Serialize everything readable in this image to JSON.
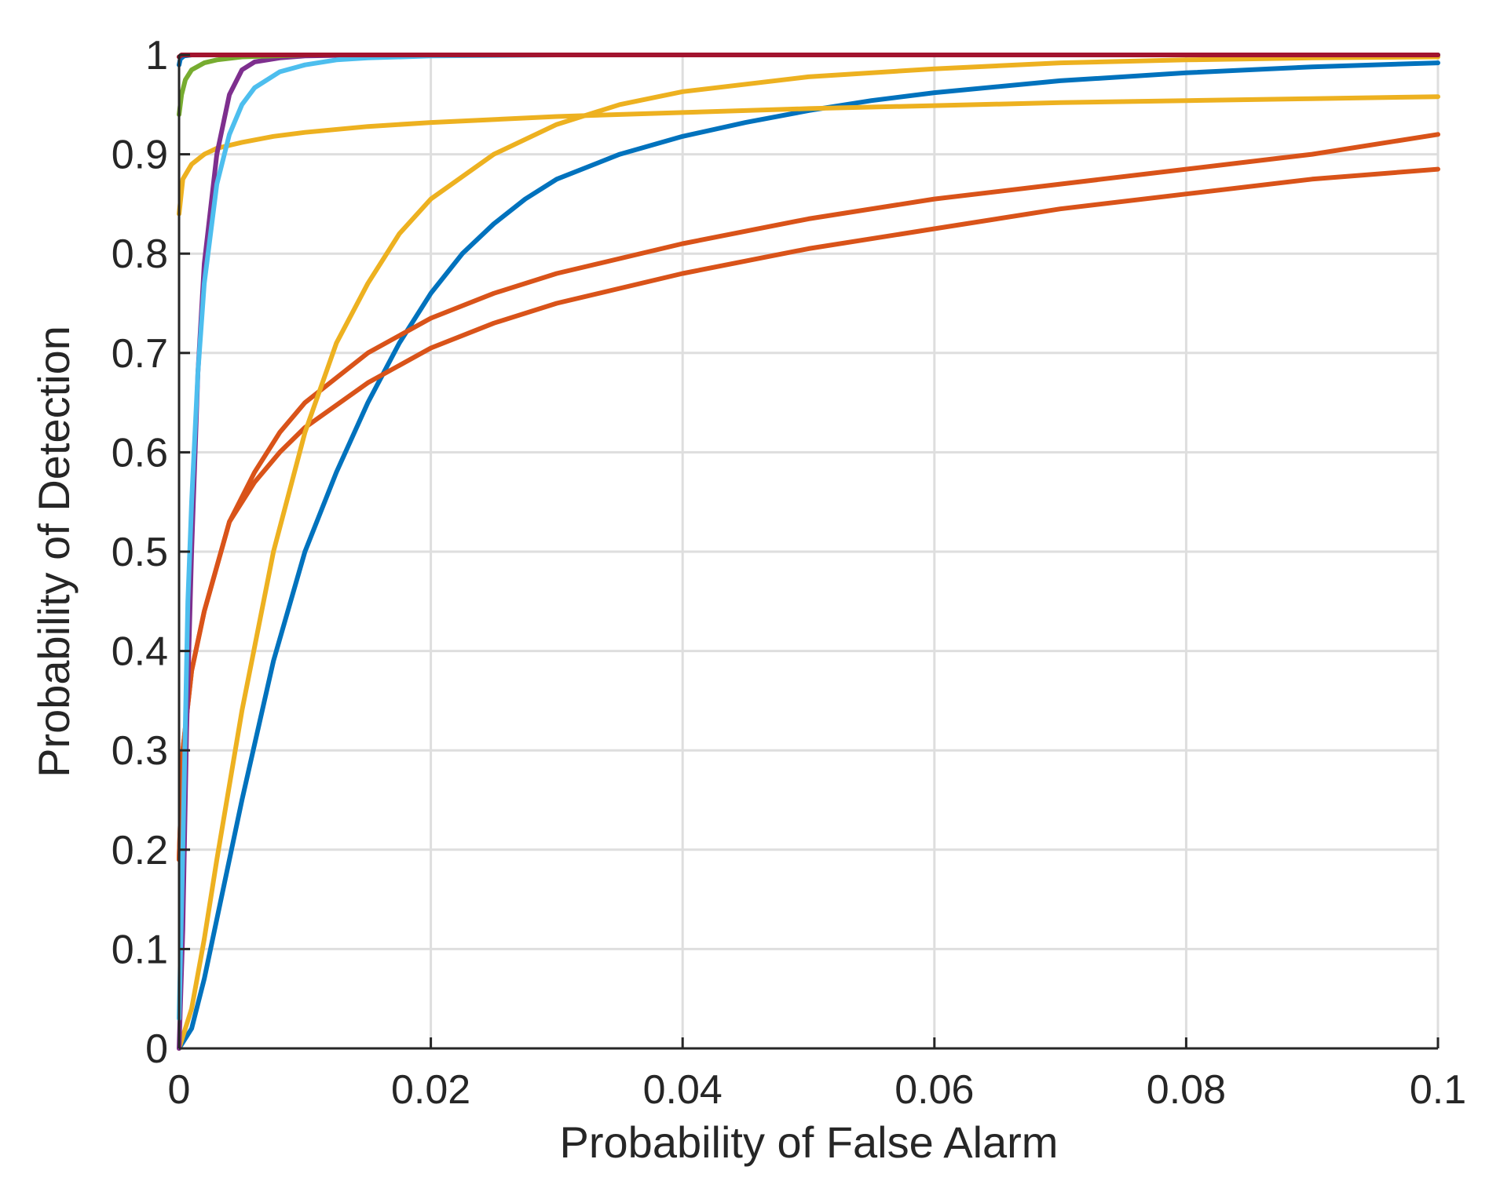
{
  "chart_data": {
    "type": "line",
    "xlabel": "Probability of False Alarm",
    "ylabel": "Probability of Detection",
    "xlim": [
      0,
      0.1
    ],
    "ylim": [
      0,
      1
    ],
    "grid": true,
    "xticks": [
      0,
      0.02,
      0.04,
      0.06,
      0.08,
      0.1
    ],
    "xtick_labels": [
      "0",
      "0.02",
      "0.04",
      "0.06",
      "0.08",
      "0.1"
    ],
    "yticks": [
      0,
      0.1,
      0.2,
      0.3,
      0.4,
      0.5,
      0.6,
      0.7,
      0.8,
      0.9,
      1
    ],
    "ytick_labels": [
      "0",
      "0.1",
      "0.2",
      "0.3",
      "0.4",
      "0.5",
      "0.6",
      "0.7",
      "0.8",
      "0.9",
      "1"
    ],
    "series": [
      {
        "color": "#0072bd",
        "x": [
          0,
          0.001,
          0.002,
          0.003,
          0.005,
          0.0075,
          0.01,
          0.0125,
          0.015,
          0.0175,
          0.02,
          0.0225,
          0.025,
          0.0275,
          0.03,
          0.035,
          0.04,
          0.045,
          0.05,
          0.055,
          0.06,
          0.07,
          0.08,
          0.09,
          0.1
        ],
        "y": [
          0,
          0.02,
          0.07,
          0.13,
          0.25,
          0.39,
          0.5,
          0.58,
          0.65,
          0.71,
          0.76,
          0.8,
          0.83,
          0.855,
          0.875,
          0.9,
          0.918,
          0.932,
          0.944,
          0.954,
          0.962,
          0.974,
          0.982,
          0.988,
          0.992
        ]
      },
      {
        "color": "#d95319",
        "x": [
          0,
          0.0003,
          0.001,
          0.002,
          0.004,
          0.006,
          0.008,
          0.01,
          0.015,
          0.02,
          0.025,
          0.03,
          0.04,
          0.05,
          0.06,
          0.07,
          0.08,
          0.09,
          0.1
        ],
        "y": [
          0.19,
          0.3,
          0.38,
          0.44,
          0.53,
          0.58,
          0.62,
          0.65,
          0.7,
          0.735,
          0.76,
          0.78,
          0.81,
          0.835,
          0.855,
          0.87,
          0.885,
          0.9,
          0.92
        ]
      },
      {
        "color": "#d95319",
        "x": [
          0,
          0.0003,
          0.001,
          0.002,
          0.004,
          0.006,
          0.008,
          0.01,
          0.015,
          0.02,
          0.025,
          0.03,
          0.04,
          0.05,
          0.06,
          0.07,
          0.08,
          0.09,
          0.1
        ],
        "y": [
          0.19,
          0.3,
          0.38,
          0.44,
          0.53,
          0.57,
          0.6,
          0.625,
          0.67,
          0.705,
          0.73,
          0.75,
          0.78,
          0.805,
          0.825,
          0.845,
          0.86,
          0.875,
          0.885
        ]
      },
      {
        "color": "#edb120",
        "x": [
          0,
          0.001,
          0.002,
          0.003,
          0.005,
          0.0075,
          0.01,
          0.0125,
          0.015,
          0.0175,
          0.02,
          0.025,
          0.03,
          0.035,
          0.04,
          0.05,
          0.06,
          0.07,
          0.08,
          0.09,
          0.1
        ],
        "y": [
          0,
          0.04,
          0.11,
          0.19,
          0.34,
          0.5,
          0.62,
          0.71,
          0.77,
          0.82,
          0.855,
          0.9,
          0.93,
          0.95,
          0.963,
          0.978,
          0.986,
          0.992,
          0.995,
          0.997,
          0.998
        ]
      },
      {
        "color": "#edb120",
        "x": [
          0,
          0.0003,
          0.001,
          0.002,
          0.003,
          0.005,
          0.0075,
          0.01,
          0.015,
          0.02,
          0.03,
          0.04,
          0.05,
          0.06,
          0.07,
          0.08,
          0.09,
          0.1
        ],
        "y": [
          0.84,
          0.875,
          0.89,
          0.9,
          0.906,
          0.912,
          0.918,
          0.922,
          0.928,
          0.932,
          0.938,
          0.942,
          0.946,
          0.949,
          0.952,
          0.954,
          0.956,
          0.958
        ]
      },
      {
        "color": "#7e2f8e",
        "x": [
          0,
          0.0003,
          0.0006,
          0.001,
          0.0015,
          0.002,
          0.003,
          0.004,
          0.005,
          0.006,
          0.008,
          0.01,
          0.015,
          0.02,
          0.03,
          0.1
        ],
        "y": [
          0,
          0.12,
          0.32,
          0.5,
          0.68,
          0.79,
          0.9,
          0.96,
          0.985,
          0.993,
          0.997,
          0.999,
          1,
          1,
          1,
          1
        ]
      },
      {
        "color": "#4dbeee",
        "x": [
          0,
          0.0003,
          0.0007,
          0.001,
          0.0015,
          0.002,
          0.003,
          0.004,
          0.005,
          0.006,
          0.008,
          0.01,
          0.0125,
          0.015,
          0.02,
          0.03,
          0.1
        ],
        "y": [
          0.03,
          0.2,
          0.45,
          0.55,
          0.68,
          0.77,
          0.87,
          0.92,
          0.95,
          0.967,
          0.983,
          0.99,
          0.995,
          0.997,
          0.999,
          1,
          1
        ]
      },
      {
        "color": "#77ac30",
        "x": [
          0,
          0.0002,
          0.0005,
          0.001,
          0.002,
          0.003,
          0.005,
          0.0075,
          0.01,
          0.015,
          0.1
        ],
        "y": [
          0.94,
          0.96,
          0.975,
          0.985,
          0.992,
          0.995,
          0.998,
          0.999,
          1,
          1,
          1
        ]
      },
      {
        "color": "#0072bd",
        "x": [
          0,
          0.0001,
          0.0004,
          0.001,
          0.1
        ],
        "y": [
          0.99,
          0.996,
          0.999,
          1,
          1
        ]
      },
      {
        "color": "#a2142f",
        "x": [
          0,
          0.0002,
          0.1
        ],
        "y": [
          0.998,
          1,
          1
        ]
      }
    ]
  }
}
